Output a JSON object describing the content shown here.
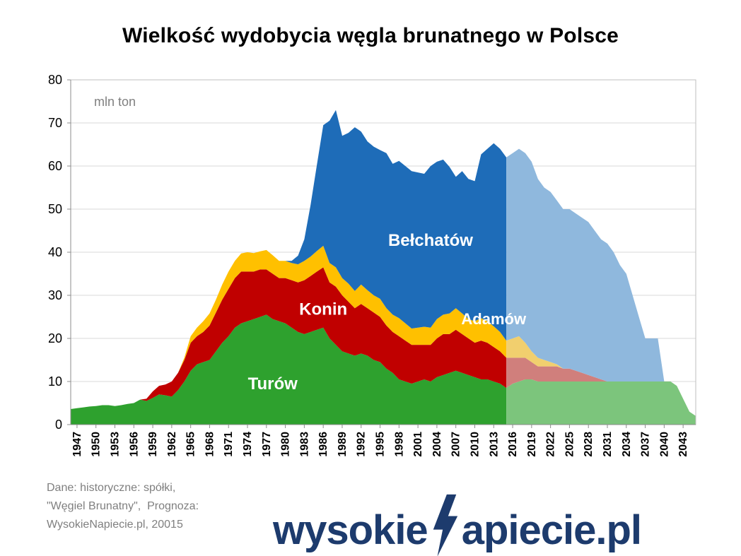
{
  "footer": {
    "lines": [
      "Dane: historyczne: spółki,",
      "\"Węgiel Brunatny\",  Prognoza:",
      "WysokieNapiecie.pl, 20015"
    ]
  },
  "logo": {
    "left": "wysokie",
    "right": "apiecie.pl",
    "color": "#1d3b6d"
  },
  "colors": {
    "grid": "#d9d9d9",
    "plot_border": "#bfbfbf",
    "axis": "#8c8c8c",
    "tick_text": "#000000",
    "unit_label": "#808080",
    "annotation_text": "#ffffff"
  },
  "chart_data": {
    "type": "area",
    "stacked": true,
    "title": "Wielkość wydobycia węgla brunatnego w Polsce",
    "xlabel": "",
    "ylabel": "mln ton",
    "ylim": [
      0,
      80
    ],
    "ytick_step": 10,
    "grid": true,
    "legend": "none",
    "x_start": 1946,
    "x_end": 2045,
    "forecast_split_year": 2015,
    "xtick_labels": [
      1947,
      1950,
      1953,
      1956,
      1959,
      1962,
      1965,
      1968,
      1971,
      1974,
      1977,
      1980,
      1983,
      1986,
      1989,
      1992,
      1995,
      1998,
      2001,
      2004,
      2007,
      2010,
      2013,
      2016,
      2019,
      2022,
      2025,
      2028,
      2031,
      2034,
      2037,
      2040,
      2043
    ],
    "series": [
      {
        "name": "Turów",
        "key": "turow",
        "color": "#2ea12e",
        "forecast_color": "#7cc57c",
        "values": [
          3.6,
          3.8,
          4,
          4.2,
          4.3,
          4.5,
          4.5,
          4.3,
          4.5,
          4.8,
          5,
          5.8,
          5.5,
          6.2,
          7,
          6.8,
          6.5,
          8,
          10,
          12.5,
          14,
          14.5,
          15,
          17,
          19,
          20.5,
          22.5,
          23.5,
          24,
          24.5,
          25,
          25.5,
          24.5,
          24,
          23.5,
          22.5,
          21.5,
          21,
          21.5,
          22,
          22.5,
          20,
          18.5,
          17,
          16.5,
          16,
          16.5,
          16,
          15,
          14.5,
          13,
          12,
          10.5,
          10,
          9.5,
          10,
          10.5,
          10,
          11,
          11.5,
          12,
          12.5,
          12,
          11.5,
          11,
          10.5,
          10.5,
          10,
          9.5,
          8.5,
          9.5,
          10,
          10.5,
          10.5,
          10,
          10,
          10,
          10,
          10,
          10,
          10,
          10,
          10,
          10,
          10,
          10,
          10,
          10,
          10,
          10,
          10,
          10,
          10,
          10,
          10,
          10,
          9,
          6,
          3,
          2
        ]
      },
      {
        "name": "Konin",
        "key": "konin",
        "color": "#c00000",
        "forecast_color": "#d07f7c",
        "values": [
          0,
          0,
          0,
          0,
          0,
          0,
          0,
          0,
          0,
          0,
          0,
          0,
          0.5,
          1.5,
          2,
          2.5,
          3.5,
          4,
          5,
          6.5,
          6.5,
          7,
          8,
          9,
          10,
          11,
          11.5,
          12,
          11.5,
          11,
          11,
          10.5,
          10.5,
          10,
          10.5,
          11,
          11.5,
          12.5,
          13,
          13.5,
          14,
          13,
          13.5,
          13,
          12,
          11,
          11.5,
          11,
          11,
          10.5,
          10,
          9.5,
          10,
          9.5,
          9,
          8.5,
          8,
          8.5,
          9,
          9.5,
          9,
          9.5,
          9,
          8.5,
          8,
          9,
          8.5,
          8,
          7.5,
          7,
          6,
          5.5,
          5,
          4,
          3.5,
          3.5,
          3.5,
          3.5,
          3,
          3,
          2.5,
          2,
          1.5,
          1,
          0.5,
          0,
          0,
          0,
          0,
          0,
          0,
          0,
          0,
          0,
          0,
          0,
          0,
          0,
          0,
          0
        ]
      },
      {
        "name": "Adamów",
        "key": "adamow",
        "color": "#ffc000",
        "forecast_color": "#f1cf6e",
        "values": [
          0,
          0,
          0,
          0,
          0,
          0,
          0,
          0,
          0,
          0,
          0,
          0,
          0,
          0,
          0,
          0,
          0,
          0,
          0.5,
          1.5,
          2,
          2.5,
          2.8,
          3,
          3.5,
          4,
          4,
          4.2,
          4.5,
          4.3,
          4.2,
          4.5,
          4.3,
          4,
          4,
          4,
          4.2,
          4.5,
          4.5,
          4.8,
          5,
          4.5,
          4.5,
          4,
          4.2,
          4,
          4.5,
          4.2,
          4,
          4.2,
          4,
          4,
          4.2,
          4,
          3.8,
          4,
          4.2,
          4,
          4.5,
          4.5,
          4.8,
          5,
          4.8,
          4.5,
          5,
          5.2,
          5,
          4.8,
          4.5,
          4,
          4.5,
          5,
          3.5,
          2.5,
          2,
          1.5,
          1,
          0.5,
          0,
          0,
          0,
          0,
          0,
          0,
          0,
          0,
          0,
          0,
          0,
          0,
          0,
          0,
          0,
          0,
          0,
          0,
          0,
          0,
          0,
          0
        ]
      },
      {
        "name": "Bełchatów",
        "key": "belchatow",
        "color": "#1e6cb8",
        "forecast_color": "#8fb8dd",
        "values": [
          0,
          0,
          0,
          0,
          0,
          0,
          0,
          0,
          0,
          0,
          0,
          0,
          0,
          0,
          0,
          0,
          0,
          0,
          0,
          0,
          0,
          0,
          0,
          0,
          0,
          0,
          0,
          0,
          0,
          0,
          0,
          0,
          0,
          0,
          0,
          0.5,
          2,
          5,
          12,
          20,
          28,
          33,
          36.5,
          33,
          35,
          38,
          35.5,
          34.5,
          34.5,
          34.5,
          36,
          35,
          36.5,
          36.5,
          36.5,
          36,
          35.5,
          37.5,
          36.5,
          36,
          34,
          30.5,
          33,
          32.5,
          32.5,
          38,
          40,
          42.5,
          42.5,
          42.5,
          43,
          43.5,
          44,
          44,
          41.5,
          40,
          39.5,
          38,
          37,
          37,
          36.5,
          36,
          35.5,
          34,
          32.5,
          32,
          30,
          27,
          25,
          20,
          15,
          10,
          10,
          10,
          0,
          0,
          0,
          0,
          0,
          0
        ]
      }
    ],
    "annotations": [
      {
        "key": "turow",
        "text": "Turów",
        "year": 1978,
        "value": 8.2,
        "size": 24
      },
      {
        "key": "konin",
        "text": "Konin",
        "year": 1986,
        "value": 25.5,
        "size": 24
      },
      {
        "key": "belchatow",
        "text": "Bełchatów",
        "year": 2003,
        "value": 41.5,
        "size": 24
      },
      {
        "key": "adamow",
        "text": "Adamów",
        "year": 2013,
        "value": 23.3,
        "size": 22
      }
    ]
  }
}
